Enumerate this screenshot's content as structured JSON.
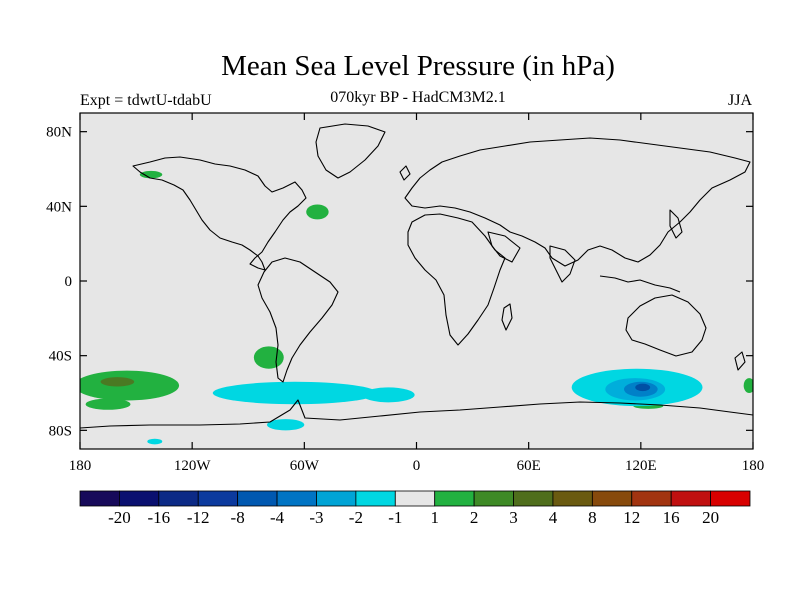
{
  "title": "Mean Sea Level Pressure (in hPa)",
  "subtitle_left": "Expt = tdwtU-tdabU",
  "subtitle_center": "070kyr BP - HadCM3M2.1",
  "subtitle_right": "JJA",
  "colors": {
    "land_background": "#e6e6e6",
    "coast": "#000000",
    "pos1": "#22b140",
    "pos2": "#4a7a23",
    "neg1": "#00d7e2",
    "neg2": "#00aedb",
    "neg3": "#0080c8",
    "neg4": "#0050a5"
  },
  "chart_data": {
    "type": "heatmap",
    "projection": "cylindrical equidistant",
    "xlim": [
      -180,
      180
    ],
    "ylim": [
      -90,
      90
    ],
    "xticks": [
      {
        "value": -180,
        "label": "180"
      },
      {
        "value": -120,
        "label": "120W"
      },
      {
        "value": -60,
        "label": "60W"
      },
      {
        "value": 0,
        "label": "0"
      },
      {
        "value": 60,
        "label": "60E"
      },
      {
        "value": 120,
        "label": "120E"
      },
      {
        "value": 180,
        "label": "180"
      }
    ],
    "yticks": [
      {
        "value": 80,
        "label": "80N"
      },
      {
        "value": 40,
        "label": "40N"
      },
      {
        "value": 0,
        "label": "0"
      },
      {
        "value": -40,
        "label": "40S"
      },
      {
        "value": -80,
        "label": "80S"
      }
    ],
    "colorbar": {
      "colors": [
        "#170a5a",
        "#0a1070",
        "#0c2a86",
        "#0c3a9e",
        "#0058b0",
        "#0074c4",
        "#00a4d6",
        "#00d7e2",
        "#e6e6e6",
        "#22b140",
        "#3e8a26",
        "#4f6e1c",
        "#6a5a10",
        "#874a0c",
        "#a23410",
        "#c01010",
        "#d80000"
      ],
      "labels": [
        "-20",
        "-16",
        "-12",
        "-8",
        "-4",
        "-3",
        "-2",
        "-1",
        "1",
        "2",
        "3",
        "4",
        "8",
        "12",
        "16",
        "20"
      ]
    },
    "regions": [
      {
        "level": 1,
        "color": "#22b140",
        "lon": -155,
        "lat": -56,
        "rlon": 28,
        "rlat": 8
      },
      {
        "level": 2,
        "color": "#4a7a23",
        "lon": -160,
        "lat": -54,
        "rlon": 9,
        "rlat": 2.5
      },
      {
        "level": 1,
        "color": "#22b140",
        "lon": -165,
        "lat": -66,
        "rlon": 12,
        "rlat": 3
      },
      {
        "level": 1,
        "color": "#22b140",
        "lon": -79,
        "lat": -41,
        "rlon": 8,
        "rlat": 6
      },
      {
        "level": 1,
        "color": "#22b140",
        "lon": -53,
        "lat": 37,
        "rlon": 6,
        "rlat": 4
      },
      {
        "level": 1,
        "color": "#22b140",
        "lon": -142,
        "lat": 57,
        "rlon": 6,
        "rlat": 2
      },
      {
        "level": 1,
        "color": "#22b140",
        "lon": 124,
        "lat": -67,
        "rlon": 8,
        "rlat": 1.5
      },
      {
        "level": 1,
        "color": "#22b140",
        "lon": 178,
        "lat": -56,
        "rlon": 3,
        "rlat": 4
      },
      {
        "level": -1,
        "color": "#00d7e2",
        "lon": -65,
        "lat": -60,
        "rlon": 44,
        "rlat": 6
      },
      {
        "level": -1,
        "color": "#00d7e2",
        "lon": -15,
        "lat": -61,
        "rlon": 14,
        "rlat": 4
      },
      {
        "level": -1,
        "color": "#00d7e2",
        "lon": -70,
        "lat": -77,
        "rlon": 10,
        "rlat": 3
      },
      {
        "level": -1,
        "color": "#00d7e2",
        "lon": -140,
        "lat": -86,
        "rlon": 4,
        "rlat": 1.5
      },
      {
        "level": -1,
        "color": "#00d7e2",
        "lon": 118,
        "lat": -57,
        "rlon": 35,
        "rlat": 10
      },
      {
        "level": -2,
        "color": "#00aedb",
        "lon": 117,
        "lat": -58,
        "rlon": 16,
        "rlat": 6
      },
      {
        "level": -3,
        "color": "#0080c8",
        "lon": 120,
        "lat": -58,
        "rlon": 9,
        "rlat": 4
      },
      {
        "level": -4,
        "color": "#0050a5",
        "lon": 121,
        "lat": -57,
        "rlon": 4,
        "rlat": 2
      }
    ]
  }
}
